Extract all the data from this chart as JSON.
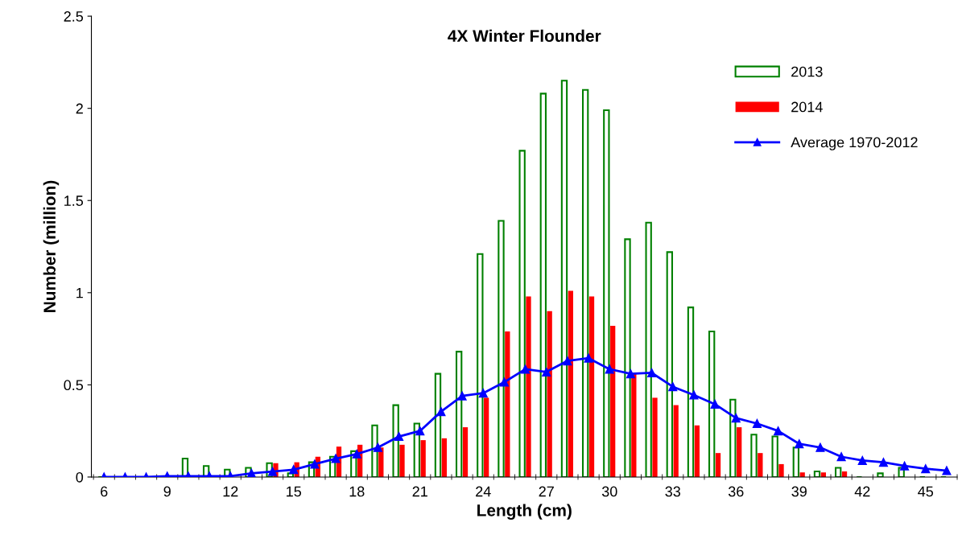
{
  "chart_data": {
    "type": "bar",
    "title": "4X Winter Flounder",
    "xlabel": "Length (cm)",
    "ylabel": "Number (million)",
    "categories": [
      "6",
      null,
      null,
      "9",
      null,
      null,
      "12",
      null,
      null,
      "15",
      null,
      null,
      "18",
      null,
      null,
      "21",
      null,
      null,
      "24",
      null,
      null,
      "27",
      null,
      null,
      "30",
      null,
      null,
      "33",
      null,
      null,
      "36",
      null,
      null,
      "39",
      null,
      null,
      "42",
      null,
      null,
      "45",
      null
    ],
    "series": [
      {
        "name": "2013",
        "color": "#008000",
        "values": [
          0,
          null,
          0,
          null,
          0.1,
          0.06,
          0.04,
          0.05,
          0.075,
          0.02,
          0.08,
          0.11,
          0.14,
          0.28,
          0.39,
          0.29,
          0.56,
          0.68,
          1.21,
          1.39,
          1.77,
          2.08,
          2.15,
          2.1,
          1.99,
          1.29,
          1.38,
          1.22,
          0.92,
          0.79,
          0.42,
          0.23,
          0.22,
          0.16,
          0.03,
          0.05,
          0,
          0.02,
          0.05,
          0,
          0
        ]
      },
      {
        "name": "2014",
        "color": "#ff0000",
        "values": [
          0,
          0,
          0,
          0,
          0,
          0,
          0,
          0,
          0.075,
          0.08,
          0.11,
          0.165,
          0.175,
          0.16,
          0.175,
          0.2,
          0.21,
          0.27,
          0.43,
          0.79,
          0.98,
          0.9,
          1.01,
          0.98,
          0.82,
          0.56,
          0.43,
          0.39,
          0.28,
          0.13,
          0.27,
          0.13,
          0.07,
          0.025,
          0.025,
          0.03,
          0,
          0,
          null,
          0,
          0
        ]
      },
      {
        "name": "Average 1970-2012",
        "type": "line",
        "color": "#0000ff",
        "values": [
          0,
          0,
          0,
          0.005,
          0.005,
          0.005,
          0.005,
          0.02,
          0.03,
          0.04,
          0.07,
          0.1,
          0.125,
          0.16,
          0.22,
          0.25,
          0.355,
          0.44,
          0.455,
          0.515,
          0.585,
          0.57,
          0.63,
          0.645,
          0.585,
          0.56,
          0.565,
          0.49,
          0.445,
          0.395,
          0.32,
          0.29,
          0.25,
          0.18,
          0.16,
          0.11,
          0.09,
          0.08,
          0.06,
          0.045,
          0.035
        ]
      }
    ],
    "ylim": [
      0,
      2.5
    ],
    "yticks": [
      0,
      0.5,
      1,
      1.5,
      2,
      2.5
    ],
    "grid": false,
    "legend": "top right",
    "marker": "triangle",
    "line_style": "solid"
  }
}
